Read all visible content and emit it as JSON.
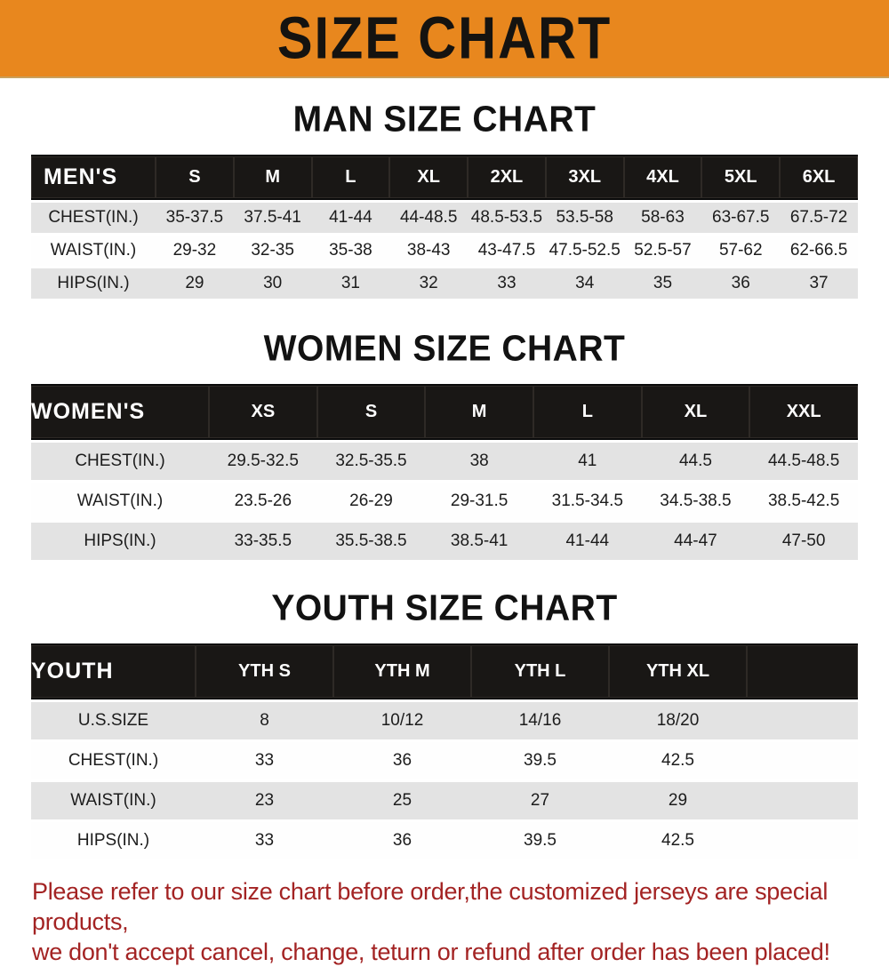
{
  "banner": {
    "title": "SIZE CHART"
  },
  "sections": {
    "men": {
      "title": "MAN SIZE CHART",
      "table": {
        "header": [
          "MEN'S",
          "S",
          "M",
          "L",
          "XL",
          "2XL",
          "3XL",
          "4XL",
          "5XL",
          "6XL"
        ],
        "rows": [
          [
            "CHEST(IN.)",
            "35-37.5",
            "37.5-41",
            "41-44",
            "44-48.5",
            "48.5-53.5",
            "53.5-58",
            "58-63",
            "63-67.5",
            "67.5-72"
          ],
          [
            "WAIST(IN.)",
            "29-32",
            "32-35",
            "35-38",
            "38-43",
            "43-47.5",
            "47.5-52.5",
            "52.5-57",
            "57-62",
            "62-66.5"
          ],
          [
            "HIPS(IN.)",
            "29",
            "30",
            "31",
            "32",
            "33",
            "34",
            "35",
            "36",
            "37"
          ]
        ]
      }
    },
    "women": {
      "title": "WOMEN SIZE CHART",
      "table": {
        "header": [
          "WOMEN'S",
          "XS",
          "S",
          "M",
          "L",
          "XL",
          "XXL"
        ],
        "rows": [
          [
            "CHEST(IN.)",
            "29.5-32.5",
            "32.5-35.5",
            "38",
            "41",
            "44.5",
            "44.5-48.5"
          ],
          [
            "WAIST(IN.)",
            "23.5-26",
            "26-29",
            "29-31.5",
            "31.5-34.5",
            "34.5-38.5",
            "38.5-42.5"
          ],
          [
            "HIPS(IN.)",
            "33-35.5",
            "35.5-38.5",
            "38.5-41",
            "41-44",
            "44-47",
            "47-50"
          ]
        ]
      }
    },
    "youth": {
      "title": "YOUTH SIZE CHART",
      "table": {
        "header": [
          "YOUTH",
          "YTH S",
          "YTH M",
          "YTH L",
          "YTH XL"
        ],
        "rows": [
          [
            "U.S.SIZE",
            "8",
            "10/12",
            "14/16",
            "18/20"
          ],
          [
            "CHEST(IN.)",
            "33",
            "36",
            "39.5",
            "42.5"
          ],
          [
            "WAIST(IN.)",
            "23",
            "25",
            "27",
            "29"
          ],
          [
            "HIPS(IN.)",
            "33",
            "36",
            "39.5",
            "42.5"
          ]
        ]
      }
    }
  },
  "disclaimer": {
    "line1": "Please refer to our size chart before order,the customized jerseys are special products,",
    "line2": "we don't accept cancel, change, teturn or refund after order has been placed!"
  },
  "colors": {
    "banner_bg": "#E8871E",
    "bar_bg": "#191715",
    "row_alt_bg": "#E3E3E3",
    "disclaimer_red": "#A32323"
  }
}
